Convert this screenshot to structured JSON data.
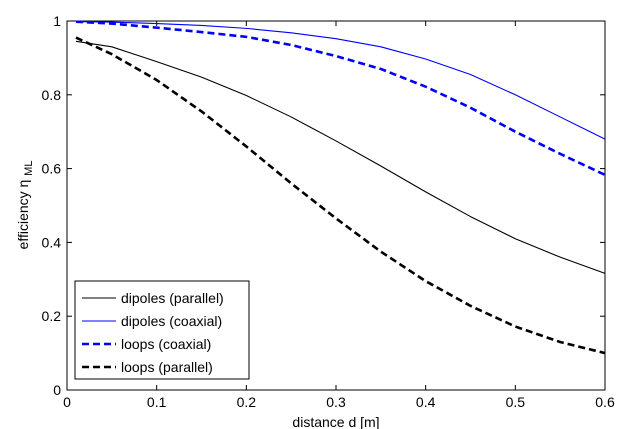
{
  "chart_data": {
    "type": "line",
    "title": "",
    "xlabel": "distance d [m]",
    "ylabel_main": "efficiency η",
    "ylabel_sub": "ML",
    "xlim": [
      0,
      0.6
    ],
    "ylim": [
      0,
      1
    ],
    "xticks": [
      0,
      0.1,
      0.2,
      0.3,
      0.4,
      0.5,
      0.6
    ],
    "xtick_labels": [
      "0",
      "0.1",
      "0.2",
      "0.3",
      "0.4",
      "0.5",
      "0.6"
    ],
    "yticks": [
      0,
      0.2,
      0.4,
      0.6,
      0.8,
      1
    ],
    "ytick_labels": [
      "0",
      "0.2",
      "0.4",
      "0.6",
      "0.8",
      "1"
    ],
    "grid": false,
    "legend_position": "bottom-left",
    "series": [
      {
        "name": "dipoles (parallel)",
        "color": "#000000",
        "dash": "solid",
        "bold": false,
        "x": [
          0.01,
          0.05,
          0.1,
          0.15,
          0.2,
          0.25,
          0.3,
          0.35,
          0.4,
          0.45,
          0.5,
          0.55,
          0.6
        ],
        "y": [
          0.945,
          0.93,
          0.89,
          0.848,
          0.798,
          0.74,
          0.675,
          0.607,
          0.537,
          0.47,
          0.41,
          0.36,
          0.316
        ]
      },
      {
        "name": "dipoles (coaxial)",
        "color": "#0000ff",
        "dash": "solid",
        "bold": false,
        "x": [
          0.01,
          0.05,
          0.1,
          0.15,
          0.2,
          0.25,
          0.3,
          0.35,
          0.4,
          0.45,
          0.5,
          0.55,
          0.6
        ],
        "y": [
          0.998,
          0.997,
          0.993,
          0.988,
          0.98,
          0.968,
          0.952,
          0.93,
          0.897,
          0.855,
          0.8,
          0.74,
          0.68
        ]
      },
      {
        "name": "loops (coaxial)",
        "color": "#0000ff",
        "dash": "dashed",
        "bold": true,
        "x": [
          0.01,
          0.05,
          0.1,
          0.15,
          0.2,
          0.25,
          0.3,
          0.35,
          0.4,
          0.45,
          0.5,
          0.55,
          0.6
        ],
        "y": [
          0.998,
          0.993,
          0.982,
          0.97,
          0.957,
          0.935,
          0.905,
          0.87,
          0.822,
          0.765,
          0.7,
          0.64,
          0.583
        ]
      },
      {
        "name": "loops (parallel)",
        "color": "#000000",
        "dash": "dashed",
        "bold": true,
        "x": [
          0.01,
          0.05,
          0.1,
          0.15,
          0.2,
          0.25,
          0.3,
          0.35,
          0.4,
          0.45,
          0.5,
          0.55,
          0.6
        ],
        "y": [
          0.955,
          0.91,
          0.84,
          0.755,
          0.66,
          0.56,
          0.465,
          0.375,
          0.295,
          0.228,
          0.172,
          0.13,
          0.1
        ]
      }
    ]
  }
}
